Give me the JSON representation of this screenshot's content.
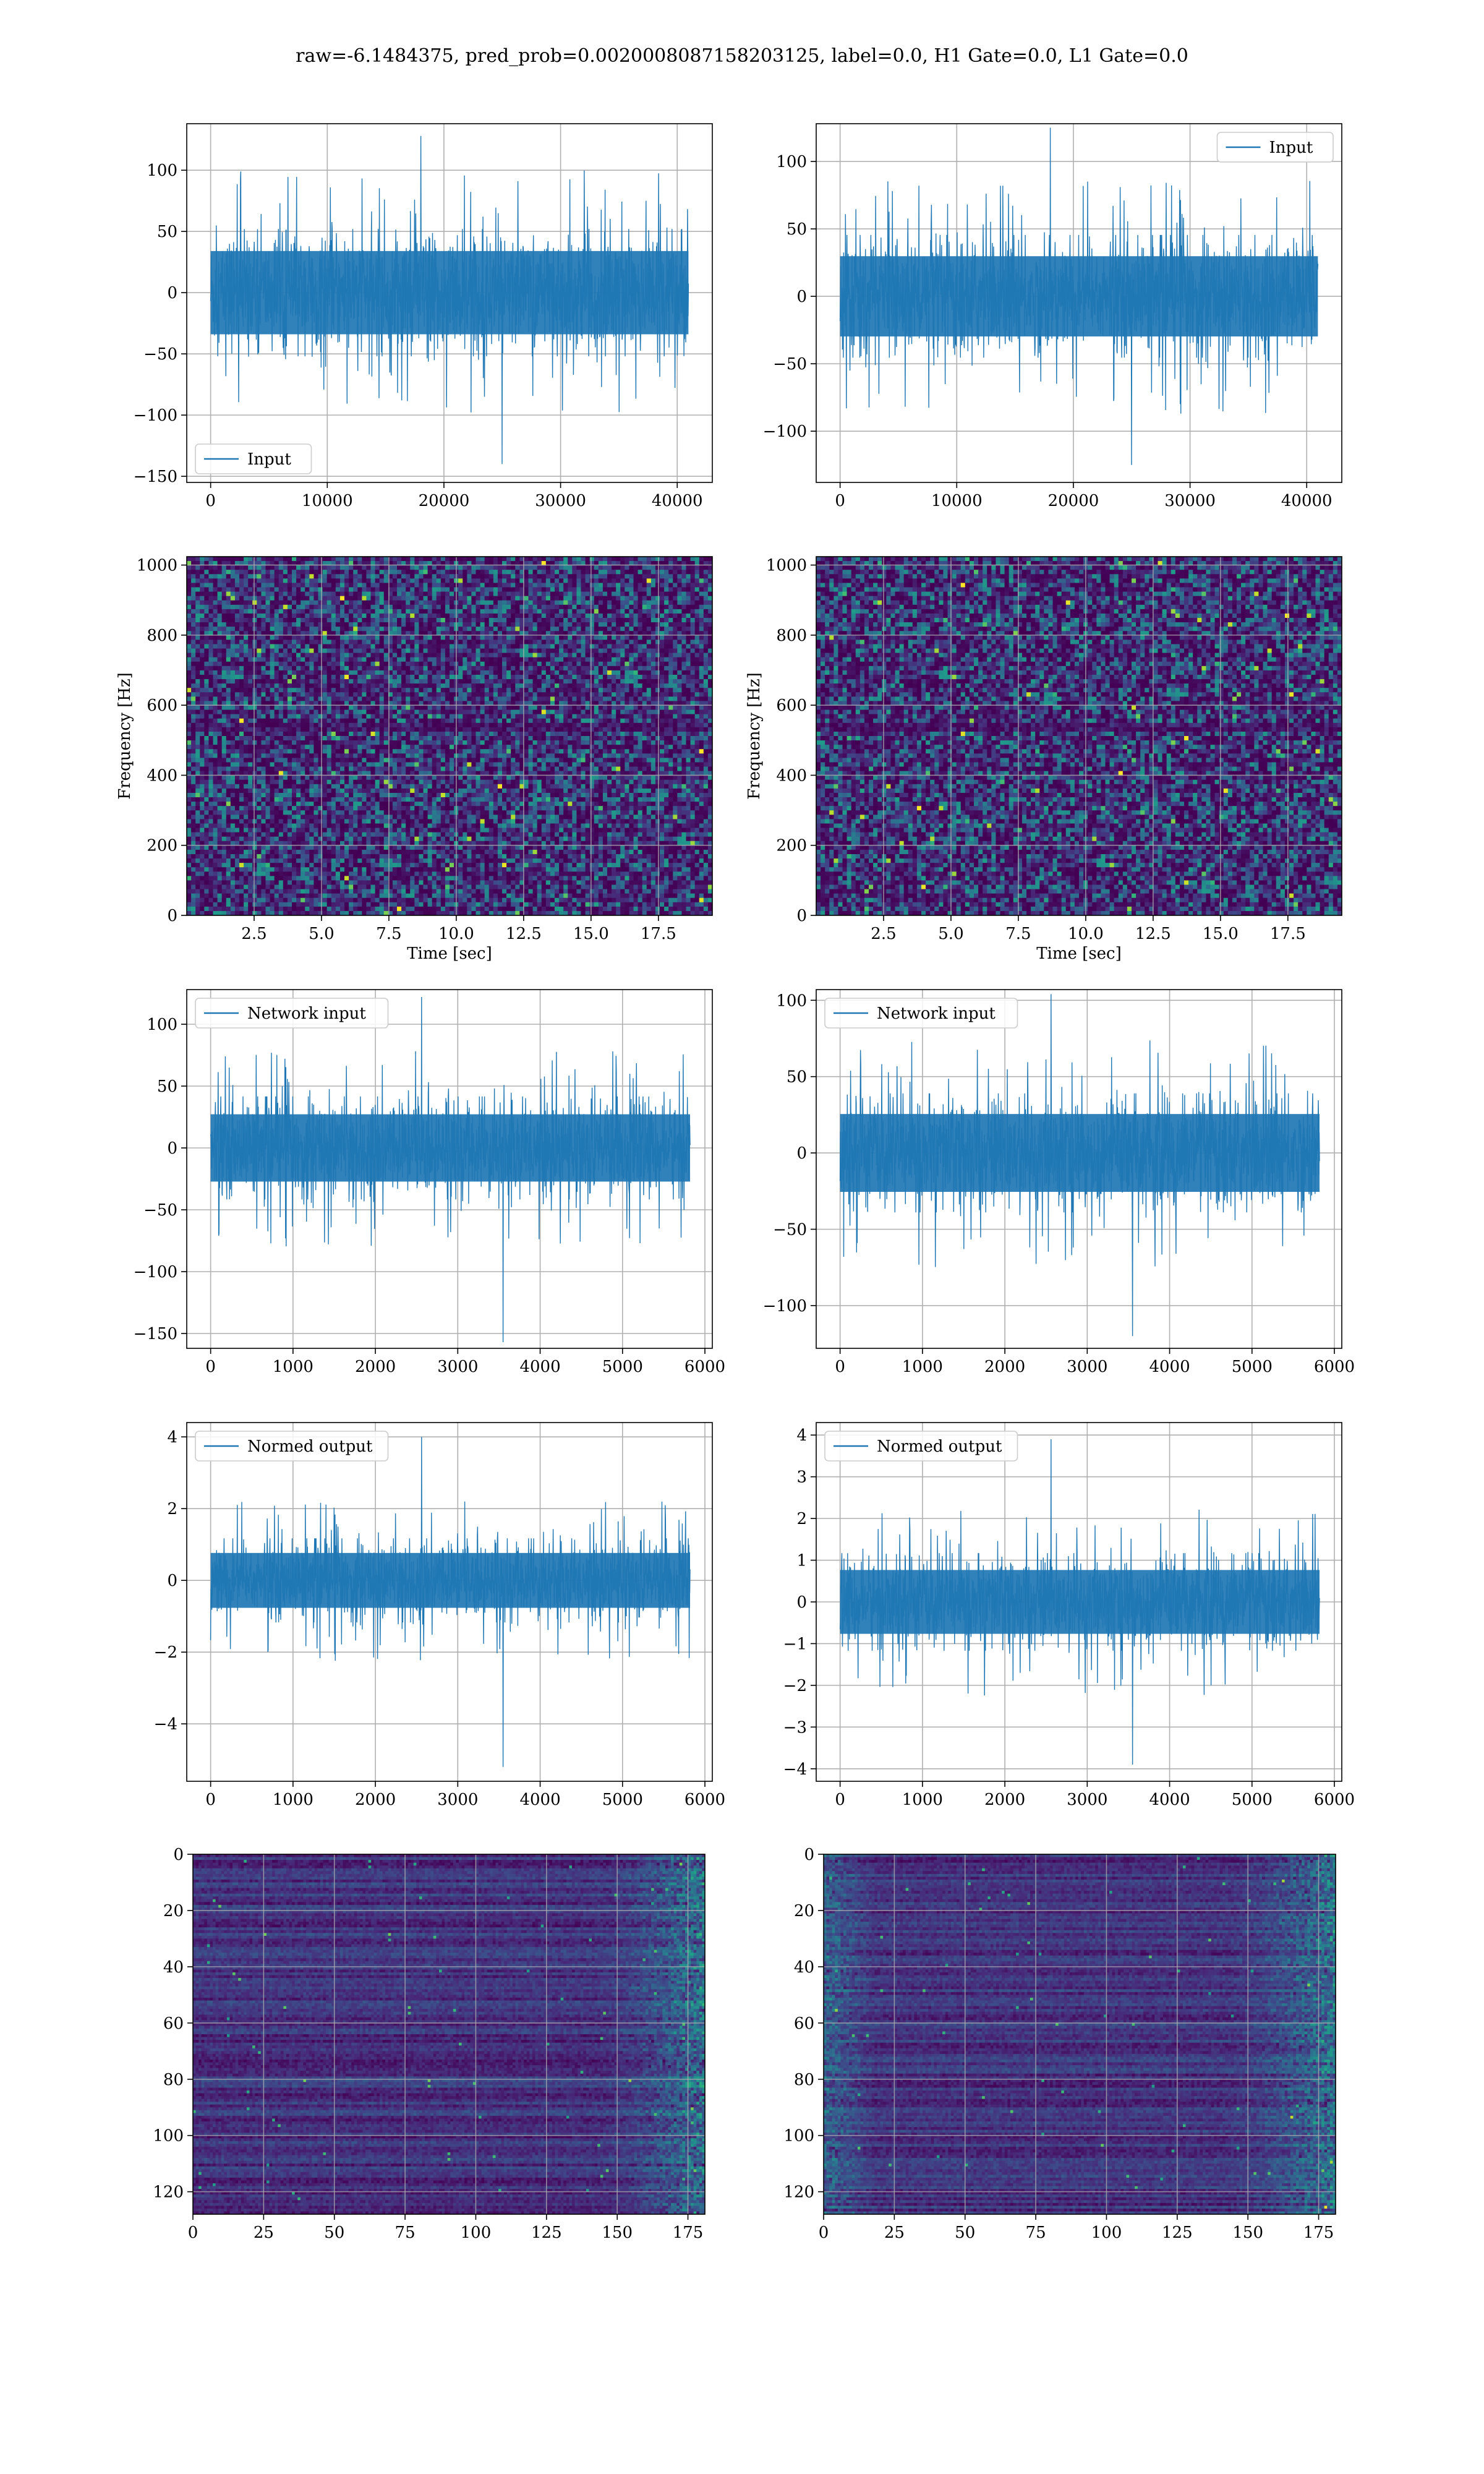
{
  "figure": {
    "title": "raw=-6.1484375, pred_prob=0.0020008087158203125, label=0.0, H1 Gate=0.0, L1 Gate=0.0"
  },
  "colors": {
    "series": "#1f77b4",
    "grid": "#b0b0b0",
    "viridis_dark": "#440154",
    "viridis_mid": "#31688e",
    "viridis_green": "#35b779",
    "viridis_yellow": "#fde725"
  },
  "chart_data": [
    {
      "type": "line",
      "name": "panel-r1-left",
      "legend": "Input",
      "legend_loc": "lower-left",
      "xlim": [
        -2048,
        43008
      ],
      "ylim": [
        -155,
        138
      ],
      "xticks": [
        0,
        10000,
        20000,
        30000,
        40000
      ],
      "xticklabels": [
        "0",
        "10000",
        "20000",
        "30000",
        "40000"
      ],
      "yticks": [
        -150,
        -100,
        -50,
        0,
        50,
        100
      ],
      "yticklabels": [
        "−150",
        "−100",
        "−50",
        "0",
        "50",
        "100"
      ],
      "signal": {
        "x_max": 40960,
        "band": [
          -40,
          40
        ],
        "peak_high": 128,
        "peak_low": -140
      }
    },
    {
      "type": "line",
      "name": "panel-r1-right",
      "legend": "Input",
      "legend_loc": "upper-right",
      "xlim": [
        -2048,
        43008
      ],
      "ylim": [
        -138,
        128
      ],
      "xticks": [
        0,
        10000,
        20000,
        30000,
        40000
      ],
      "xticklabels": [
        "0",
        "10000",
        "20000",
        "30000",
        "40000"
      ],
      "yticks": [
        -100,
        -50,
        0,
        50,
        100
      ],
      "yticklabels": [
        "−100",
        "−50",
        "0",
        "50",
        "100"
      ],
      "signal": {
        "x_max": 40960,
        "band": [
          -35,
          35
        ],
        "peak_high": 125,
        "peak_low": -125
      }
    },
    {
      "type": "heatmap",
      "name": "panel-r2-left",
      "xlabel": "Time [sec]",
      "ylabel": "Frequency [Hz]",
      "xlim": [
        0,
        19.5
      ],
      "ylim": [
        0,
        1024
      ],
      "xticks": [
        2.5,
        5.0,
        7.5,
        10.0,
        12.5,
        15.0,
        17.5
      ],
      "xticklabels": [
        "2.5",
        "5.0",
        "7.5",
        "10.0",
        "12.5",
        "15.0",
        "17.5"
      ],
      "yticks": [
        0,
        200,
        400,
        600,
        800,
        1000
      ],
      "yticklabels": [
        "0",
        "200",
        "400",
        "600",
        "800",
        "1000"
      ],
      "cmap": "viridis",
      "style": "speckle"
    },
    {
      "type": "heatmap",
      "name": "panel-r2-right",
      "xlabel": "Time [sec]",
      "ylabel": "Frequency [Hz]",
      "xlim": [
        0,
        19.5
      ],
      "ylim": [
        0,
        1024
      ],
      "xticks": [
        2.5,
        5.0,
        7.5,
        10.0,
        12.5,
        15.0,
        17.5
      ],
      "xticklabels": [
        "2.5",
        "5.0",
        "7.5",
        "10.0",
        "12.5",
        "15.0",
        "17.5"
      ],
      "yticks": [
        0,
        200,
        400,
        600,
        800,
        1000
      ],
      "yticklabels": [
        "0",
        "200",
        "400",
        "600",
        "800",
        "1000"
      ],
      "cmap": "viridis",
      "style": "speckle"
    },
    {
      "type": "line",
      "name": "panel-r3-left",
      "legend": "Network input",
      "legend_loc": "upper-left",
      "xlim": [
        -290,
        6090
      ],
      "ylim": [
        -162,
        128
      ],
      "xticks": [
        0,
        1000,
        2000,
        3000,
        4000,
        5000,
        6000
      ],
      "xticklabels": [
        "0",
        "1000",
        "2000",
        "3000",
        "4000",
        "5000",
        "6000"
      ],
      "yticks": [
        -150,
        -100,
        -50,
        0,
        50,
        100
      ],
      "yticklabels": [
        "−150",
        "−100",
        "−50",
        "0",
        "50",
        "100"
      ],
      "signal": {
        "x_max": 5820,
        "band": [
          -32,
          32
        ],
        "peak_high": 122,
        "peak_low": -157
      }
    },
    {
      "type": "line",
      "name": "panel-r3-right",
      "legend": "Network input",
      "legend_loc": "upper-left",
      "xlim": [
        -290,
        6090
      ],
      "ylim": [
        -128,
        107
      ],
      "xticks": [
        0,
        1000,
        2000,
        3000,
        4000,
        5000,
        6000
      ],
      "xticklabels": [
        "0",
        "1000",
        "2000",
        "3000",
        "4000",
        "5000",
        "6000"
      ],
      "yticks": [
        -100,
        -50,
        0,
        50,
        100
      ],
      "yticklabels": [
        "−100",
        "−50",
        "0",
        "50",
        "100"
      ],
      "signal": {
        "x_max": 5820,
        "band": [
          -30,
          30
        ],
        "peak_high": 104,
        "peak_low": -120
      }
    },
    {
      "type": "line",
      "name": "panel-r4-left",
      "legend": "Normed output",
      "legend_loc": "upper-left",
      "xlim": [
        -290,
        6090
      ],
      "ylim": [
        -5.6,
        4.4
      ],
      "xticks": [
        0,
        1000,
        2000,
        3000,
        4000,
        5000,
        6000
      ],
      "xticklabels": [
        "0",
        "1000",
        "2000",
        "3000",
        "4000",
        "5000",
        "6000"
      ],
      "yticks": [
        -4,
        -2,
        0,
        2,
        4
      ],
      "yticklabels": [
        "−4",
        "−2",
        "0",
        "2",
        "4"
      ],
      "signal": {
        "x_max": 5820,
        "band": [
          -0.9,
          0.9
        ],
        "peak_high": 4.0,
        "peak_low": -5.2
      }
    },
    {
      "type": "line",
      "name": "panel-r4-right",
      "legend": "Normed output",
      "legend_loc": "upper-left",
      "xlim": [
        -290,
        6090
      ],
      "ylim": [
        -4.3,
        4.3
      ],
      "xticks": [
        0,
        1000,
        2000,
        3000,
        4000,
        5000,
        6000
      ],
      "xticklabels": [
        "0",
        "1000",
        "2000",
        "3000",
        "4000",
        "5000",
        "6000"
      ],
      "yticks": [
        -4,
        -3,
        -2,
        -1,
        0,
        1,
        2,
        3,
        4
      ],
      "yticklabels": [
        "−4",
        "−3",
        "−2",
        "−1",
        "0",
        "1",
        "2",
        "3",
        "4"
      ],
      "signal": {
        "x_max": 5820,
        "band": [
          -0.9,
          0.9
        ],
        "peak_high": 3.9,
        "peak_low": -3.9
      }
    },
    {
      "type": "heatmap",
      "name": "panel-r5-left",
      "xlim": [
        0,
        181
      ],
      "ylim": [
        128,
        0
      ],
      "xticks": [
        0,
        25,
        50,
        75,
        100,
        125,
        150,
        175
      ],
      "xticklabels": [
        "0",
        "25",
        "50",
        "75",
        "100",
        "125",
        "150",
        "175"
      ],
      "yticks": [
        0,
        20,
        40,
        60,
        80,
        100,
        120
      ],
      "yticklabels": [
        "0",
        "20",
        "40",
        "60",
        "80",
        "100",
        "120"
      ],
      "cmap": "viridis",
      "style": "rows",
      "hot_side": "right"
    },
    {
      "type": "heatmap",
      "name": "panel-r5-right",
      "xlim": [
        0,
        181
      ],
      "ylim": [
        128,
        0
      ],
      "xticks": [
        0,
        25,
        50,
        75,
        100,
        125,
        150,
        175
      ],
      "xticklabels": [
        "0",
        "25",
        "50",
        "75",
        "100",
        "125",
        "150",
        "175"
      ],
      "yticks": [
        0,
        20,
        40,
        60,
        80,
        100,
        120
      ],
      "yticklabels": [
        "0",
        "20",
        "40",
        "60",
        "80",
        "100",
        "120"
      ],
      "cmap": "viridis",
      "style": "rows",
      "hot_side": "both"
    }
  ]
}
